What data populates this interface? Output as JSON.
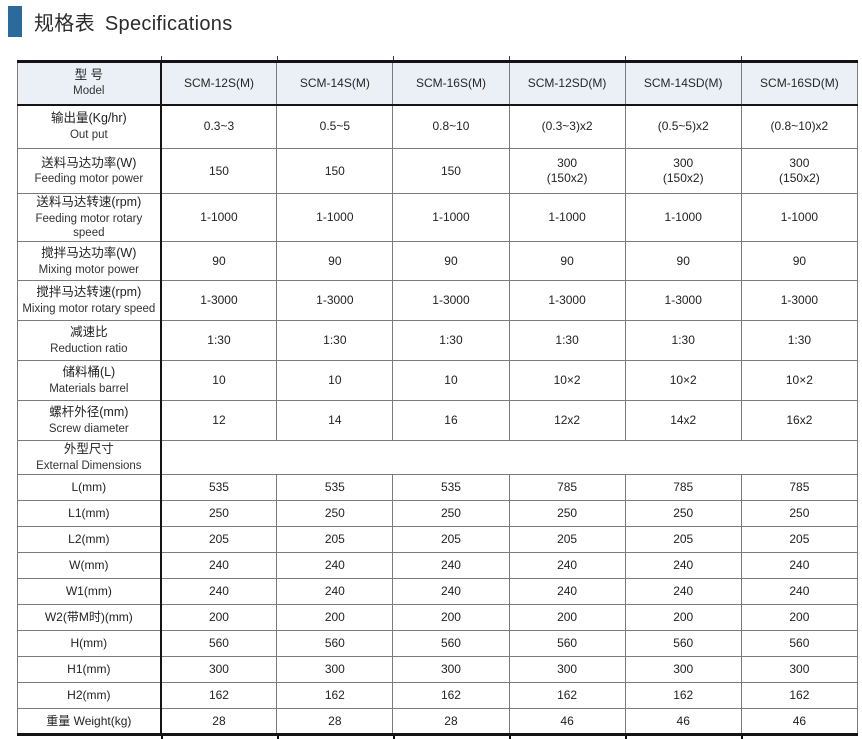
{
  "title": {
    "zh": "规格表",
    "en": "Specifications"
  },
  "colors": {
    "accent": "#2a6a9c",
    "header_bg": "#eaf0f6",
    "border_dark": "#141414",
    "border_light": "#7b7b7b"
  },
  "table": {
    "header": {
      "label_zh": "型 号",
      "label_en": "Model",
      "models": [
        "SCM-12S(M)",
        "SCM-14S(M)",
        "SCM-16S(M)",
        "SCM-12SD(M)",
        "SCM-14SD(M)",
        "SCM-16SD(M)"
      ]
    },
    "spec_rows": [
      {
        "zh": "输出量(Kg/hr)",
        "en": "Out put",
        "values": [
          "0.3~3",
          "0.5~5",
          "0.8~10",
          "(0.3~3)x2",
          "(0.5~5)x2",
          "(0.8~10)x2"
        ]
      },
      {
        "zh": "送料马达功率(W)",
        "en": "Feeding motor power",
        "values": [
          "150",
          "150",
          "150",
          "300\n(150x2)",
          "300\n(150x2)",
          "300\n(150x2)"
        ]
      },
      {
        "zh": "送料马达转速(rpm)",
        "en": "Feeding motor rotary speed",
        "values": [
          "1-1000",
          "1-1000",
          "1-1000",
          "1-1000",
          "1-1000",
          "1-1000"
        ]
      },
      {
        "zh": "搅拌马达功率(W)",
        "en": "Mixing motor power",
        "values": [
          "90",
          "90",
          "90",
          "90",
          "90",
          "90"
        ]
      },
      {
        "zh": "搅拌马达转速(rpm)",
        "en": "Mixing motor rotary speed",
        "values": [
          "1-3000",
          "1-3000",
          "1-3000",
          "1-3000",
          "1-3000",
          "1-3000"
        ]
      },
      {
        "zh": "减速比",
        "en": "Reduction ratio",
        "values": [
          "1:30",
          "1:30",
          "1:30",
          "1:30",
          "1:30",
          "1:30"
        ]
      },
      {
        "zh": "储料桶(L)",
        "en": "Materials barrel",
        "values": [
          "10",
          "10",
          "10",
          "10×2",
          "10×2",
          "10×2"
        ]
      },
      {
        "zh": "螺杆外径(mm)",
        "en": "Screw diameter",
        "values": [
          "12",
          "14",
          "16",
          "12x2",
          "14x2",
          "16x2"
        ]
      },
      {
        "zh": "外型尺寸",
        "en": "External Dimensions",
        "merged_empty": true
      }
    ],
    "dim_rows": [
      {
        "label": "L(mm)",
        "values": [
          "535",
          "535",
          "535",
          "785",
          "785",
          "785"
        ]
      },
      {
        "label": "L1(mm)",
        "values": [
          "250",
          "250",
          "250",
          "250",
          "250",
          "250"
        ]
      },
      {
        "label": "L2(mm)",
        "values": [
          "205",
          "205",
          "205",
          "205",
          "205",
          "205"
        ]
      },
      {
        "label": "W(mm)",
        "values": [
          "240",
          "240",
          "240",
          "240",
          "240",
          "240"
        ]
      },
      {
        "label": "W1(mm)",
        "values": [
          "240",
          "240",
          "240",
          "240",
          "240",
          "240"
        ]
      },
      {
        "label": "W2(带M时)(mm)",
        "values": [
          "200",
          "200",
          "200",
          "200",
          "200",
          "200"
        ]
      },
      {
        "label": "H(mm)",
        "values": [
          "560",
          "560",
          "560",
          "560",
          "560",
          "560"
        ]
      },
      {
        "label": "H1(mm)",
        "values": [
          "300",
          "300",
          "300",
          "300",
          "300",
          "300"
        ]
      },
      {
        "label": "H2(mm)",
        "values": [
          "162",
          "162",
          "162",
          "162",
          "162",
          "162"
        ]
      },
      {
        "label": "重量 Weight(kg)",
        "values": [
          "28",
          "28",
          "28",
          "46",
          "46",
          "46"
        ]
      }
    ]
  }
}
